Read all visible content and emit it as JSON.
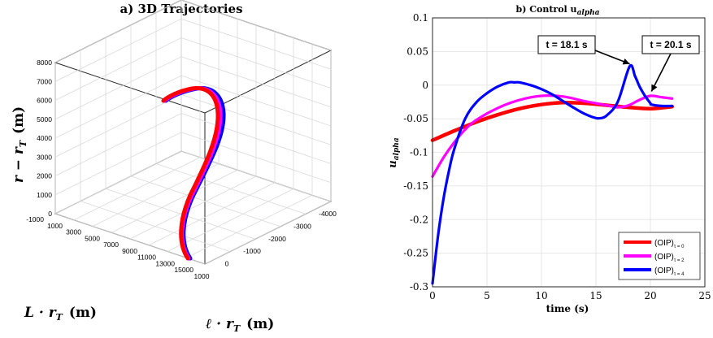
{
  "chart_data": [
    {
      "type": "line",
      "panel": "a",
      "title": "a) 3D Trajectories",
      "xlabel": "ℓ · r",
      "xlabel_sub": "T",
      "xlabel_unit": "(m)",
      "ylabel": "L · r",
      "ylabel_sub": "T",
      "ylabel_unit": "(m)",
      "zlabel": "r − r",
      "zlabel_sub": "T",
      "zlabel_unit": "(m)",
      "x_ticks": [
        "1000",
        "0",
        "-1000",
        "-2000",
        "-3000",
        "-4000"
      ],
      "y_ticks": [
        "-1000",
        "1000",
        "3000",
        "5000",
        "7000",
        "9000",
        "11000",
        "13000",
        "15000"
      ],
      "z_ticks": [
        "0",
        "1000",
        "2000",
        "3000",
        "4000",
        "5000",
        "6000",
        "7000",
        "8000"
      ],
      "xlim": [
        1000,
        -4000
      ],
      "ylim": [
        -1000,
        15000
      ],
      "zlim": [
        0,
        8000
      ],
      "grid": true,
      "series": [
        {
          "color": "#ff0000"
        },
        {
          "color": "#ff00ff"
        },
        {
          "color": "#0000ff"
        }
      ]
    },
    {
      "type": "line",
      "panel": "b",
      "title": "b)  Control  u",
      "title_sub": "alpha",
      "xlabel": "time  (s)",
      "ylabel": "u",
      "ylabel_sub": "alpha",
      "xlim": [
        0,
        25
      ],
      "ylim": [
        -0.3,
        0.1
      ],
      "x_ticks": [
        "0",
        "5",
        "10",
        "15",
        "20",
        "25"
      ],
      "y_ticks": [
        "-0.3",
        "-0.25",
        "-0.2",
        "-0.15",
        "-0.1",
        "-0.05",
        "0",
        "0.05",
        "0.1"
      ],
      "grid": true,
      "legend_position": "bottom-right",
      "annotations": [
        {
          "text": "t = 18.1 s",
          "x": 18.1,
          "y": 0.028
        },
        {
          "text": "t = 20.1 s",
          "x": 20.1,
          "y": -0.013
        }
      ],
      "series": [
        {
          "name": "(OIP)",
          "name_sub": "τ = 0",
          "color": "#ff0000",
          "x": [
            0,
            2,
            4,
            6,
            8,
            10,
            12,
            14,
            16,
            18,
            20,
            22
          ],
          "y": [
            -0.082,
            -0.068,
            -0.055,
            -0.044,
            -0.035,
            -0.029,
            -0.026,
            -0.027,
            -0.03,
            -0.033,
            -0.035,
            -0.032
          ]
        },
        {
          "name": "(OIP)",
          "name_sub": "τ = 2",
          "color": "#ff00ff",
          "x": [
            0,
            1,
            2,
            3,
            4,
            6,
            8,
            10,
            12,
            14,
            16,
            17,
            18,
            19,
            20,
            21,
            22
          ],
          "y": [
            -0.136,
            -0.108,
            -0.085,
            -0.066,
            -0.052,
            -0.034,
            -0.022,
            -0.016,
            -0.017,
            -0.024,
            -0.03,
            -0.033,
            -0.03,
            -0.022,
            -0.016,
            -0.018,
            -0.02
          ]
        },
        {
          "name": "(OIP)",
          "name_sub": "τ = 4",
          "color": "#0000ff",
          "x": [
            0,
            0.5,
            1,
            1.5,
            2,
            3,
            4,
            5,
            6,
            7,
            7.5,
            8,
            9,
            10,
            11,
            12,
            13,
            14,
            15,
            15.5,
            16,
            17,
            18.1,
            18.6,
            19,
            19.5,
            20,
            20.1,
            21,
            22
          ],
          "y": [
            -0.295,
            -0.225,
            -0.17,
            -0.128,
            -0.095,
            -0.05,
            -0.026,
            -0.012,
            -0.002,
            0.004,
            0.004,
            0.004,
            0.0,
            -0.006,
            -0.014,
            -0.024,
            -0.034,
            -0.043,
            -0.049,
            -0.049,
            -0.045,
            -0.025,
            0.028,
            0.013,
            -0.002,
            -0.016,
            -0.027,
            -0.029,
            -0.031,
            -0.031
          ]
        }
      ]
    }
  ]
}
